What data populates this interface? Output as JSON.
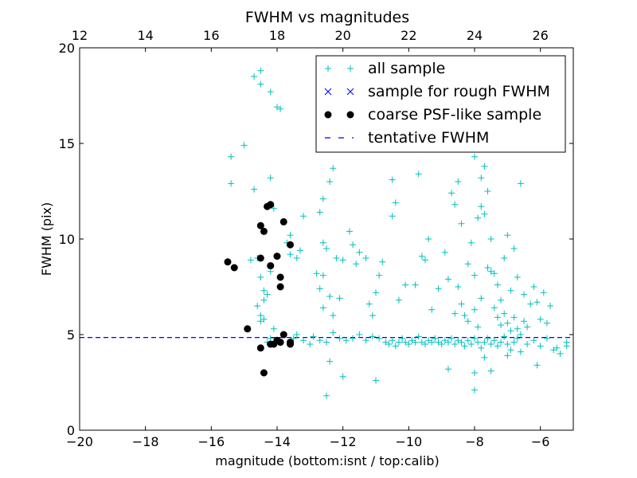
{
  "chart_data": {
    "type": "scatter",
    "title": "FWHM vs magnitudes",
    "xlabel": "magnitude (bottom:isnt / top:calib)",
    "ylabel": "FWHM (pix)",
    "xlim": [
      -20,
      -5
    ],
    "ylim": [
      0,
      20
    ],
    "top_xlim": [
      12,
      27
    ],
    "x_ticks": [
      -20,
      -18,
      -16,
      -14,
      -12,
      -10,
      -8,
      -6
    ],
    "x_tick_labels": [
      "−20",
      "−18",
      "−16",
      "−14",
      "−12",
      "−10",
      "−8",
      "−6"
    ],
    "top_x_ticks": [
      12,
      14,
      16,
      18,
      20,
      22,
      24,
      26
    ],
    "top_x_tick_labels": [
      "12",
      "14",
      "16",
      "18",
      "20",
      "22",
      "24",
      "26"
    ],
    "y_ticks": [
      0,
      5,
      10,
      15,
      20
    ],
    "y_tick_labels": [
      "0",
      "5",
      "10",
      "15",
      "20"
    ],
    "grid": false,
    "legend_position": "top-right",
    "series": [
      {
        "name": "all sample",
        "marker": "plus",
        "color": "#00bfbf",
        "points": [
          [
            -14.7,
            18.5
          ],
          [
            -14.5,
            18.8
          ],
          [
            -14.5,
            18.1
          ],
          [
            -14.2,
            17.7
          ],
          [
            -14.0,
            16.9
          ],
          [
            -13.9,
            16.8
          ],
          [
            -15.0,
            14.9
          ],
          [
            -15.4,
            14.3
          ],
          [
            -15.4,
            12.9
          ],
          [
            -14.7,
            12.6
          ],
          [
            -14.2,
            13.2
          ],
          [
            -14.1,
            11.6
          ],
          [
            -13.6,
            10.2
          ],
          [
            -13.7,
            9.8
          ],
          [
            -13.6,
            9.2
          ],
          [
            -13.3,
            9.4
          ],
          [
            -13.2,
            11.2
          ],
          [
            -13.4,
            9.0
          ],
          [
            -14.6,
            9.0
          ],
          [
            -14.8,
            8.9
          ],
          [
            -14.5,
            8.0
          ],
          [
            -14.4,
            7.3
          ],
          [
            -14.3,
            7.1
          ],
          [
            -14.6,
            6.5
          ],
          [
            -14.4,
            6.8
          ],
          [
            -14.2,
            8.3
          ],
          [
            -14.5,
            6.0
          ],
          [
            -14.4,
            5.8
          ],
          [
            -14.5,
            5.7
          ],
          [
            -14.1,
            5.3
          ],
          [
            -14.2,
            4.8
          ],
          [
            -14.3,
            4.6
          ],
          [
            -13.8,
            5.0
          ],
          [
            -13.5,
            4.8
          ],
          [
            -13.4,
            5.0
          ],
          [
            -13.2,
            4.7
          ],
          [
            -13.0,
            4.5
          ],
          [
            -12.9,
            4.9
          ],
          [
            -12.7,
            4.7
          ],
          [
            -12.5,
            4.6
          ],
          [
            -12.3,
            5.1
          ],
          [
            -12.1,
            4.8
          ],
          [
            -11.9,
            4.7
          ],
          [
            -11.7,
            4.8
          ],
          [
            -11.5,
            5.0
          ],
          [
            -11.3,
            4.7
          ],
          [
            -11.1,
            4.9
          ],
          [
            -10.9,
            4.8
          ],
          [
            -10.7,
            4.6
          ],
          [
            -10.6,
            4.5
          ],
          [
            -10.5,
            4.7
          ],
          [
            -10.4,
            4.4
          ],
          [
            -10.3,
            4.6
          ],
          [
            -10.2,
            4.8
          ],
          [
            -10.1,
            4.6
          ],
          [
            -10.0,
            4.5
          ],
          [
            -9.9,
            4.7
          ],
          [
            -9.8,
            4.6
          ],
          [
            -9.7,
            4.9
          ],
          [
            -9.6,
            4.6
          ],
          [
            -9.5,
            4.5
          ],
          [
            -9.4,
            4.7
          ],
          [
            -9.3,
            4.6
          ],
          [
            -9.2,
            4.8
          ],
          [
            -9.1,
            4.6
          ],
          [
            -9.0,
            4.5
          ],
          [
            -8.9,
            4.7
          ],
          [
            -8.8,
            4.6
          ],
          [
            -8.7,
            4.8
          ],
          [
            -8.6,
            4.5
          ],
          [
            -8.5,
            4.7
          ],
          [
            -8.4,
            4.6
          ],
          [
            -8.3,
            4.4
          ],
          [
            -8.2,
            4.7
          ],
          [
            -8.1,
            4.5
          ],
          [
            -8.0,
            4.8
          ],
          [
            -7.9,
            4.6
          ],
          [
            -7.8,
            4.3
          ],
          [
            -7.7,
            4.6
          ],
          [
            -7.6,
            4.8
          ],
          [
            -7.5,
            4.5
          ],
          [
            -7.4,
            4.7
          ],
          [
            -7.3,
            4.4
          ],
          [
            -7.2,
            4.6
          ],
          [
            -7.1,
            4.9
          ],
          [
            -7.0,
            4.5
          ],
          [
            -6.9,
            4.2
          ],
          [
            -6.8,
            4.6
          ],
          [
            -6.7,
            4.8
          ],
          [
            -6.6,
            4.1
          ],
          [
            -6.4,
            4.5
          ],
          [
            -6.2,
            4.7
          ],
          [
            -6.0,
            4.4
          ],
          [
            -5.8,
            4.8
          ],
          [
            -5.6,
            4.2
          ],
          [
            -5.4,
            4.0
          ],
          [
            -5.2,
            4.6
          ],
          [
            -5.2,
            4.4
          ],
          [
            -5.5,
            4.3
          ],
          [
            -12.7,
            7.4
          ],
          [
            -12.6,
            6.4
          ],
          [
            -12.4,
            7.0
          ],
          [
            -12.3,
            6.0
          ],
          [
            -12.1,
            6.9
          ],
          [
            -12.8,
            8.2
          ],
          [
            -12.6,
            8.1
          ],
          [
            -12.6,
            9.8
          ],
          [
            -12.7,
            11.4
          ],
          [
            -12.6,
            12.1
          ],
          [
            -12.4,
            13.0
          ],
          [
            -12.3,
            13.7
          ],
          [
            -12.5,
            9.5
          ],
          [
            -12.2,
            9.0
          ],
          [
            -12.0,
            8.9
          ],
          [
            -11.8,
            10.4
          ],
          [
            -11.7,
            9.7
          ],
          [
            -11.6,
            8.7
          ],
          [
            -11.5,
            9.3
          ],
          [
            -11.3,
            9.0
          ],
          [
            -11.2,
            6.6
          ],
          [
            -11.0,
            7.2
          ],
          [
            -11.1,
            6.0
          ],
          [
            -10.9,
            8.1
          ],
          [
            -10.8,
            8.8
          ],
          [
            -10.5,
            13.1
          ],
          [
            -10.5,
            11.2
          ],
          [
            -10.4,
            11.9
          ],
          [
            -10.3,
            6.8
          ],
          [
            -10.1,
            7.6
          ],
          [
            -9.8,
            7.6
          ],
          [
            -9.7,
            13.4
          ],
          [
            -9.6,
            9.1
          ],
          [
            -9.5,
            8.9
          ],
          [
            -9.4,
            10.0
          ],
          [
            -9.3,
            6.3
          ],
          [
            -9.1,
            7.4
          ],
          [
            -8.9,
            9.3
          ],
          [
            -8.8,
            7.9
          ],
          [
            -8.7,
            12.4
          ],
          [
            -8.6,
            11.8
          ],
          [
            -8.5,
            13.0
          ],
          [
            -8.5,
            7.5
          ],
          [
            -8.4,
            10.8
          ],
          [
            -8.3,
            6.0
          ],
          [
            -8.2,
            8.7
          ],
          [
            -8.1,
            9.8
          ],
          [
            -8.0,
            8.1
          ],
          [
            -7.9,
            11.1
          ],
          [
            -7.8,
            11.7
          ],
          [
            -7.7,
            13.8
          ],
          [
            -7.6,
            12.5
          ],
          [
            -7.5,
            10.0
          ],
          [
            -7.4,
            8.2
          ],
          [
            -7.3,
            7.6
          ],
          [
            -7.2,
            6.8
          ],
          [
            -7.1,
            9.0
          ],
          [
            -7.0,
            10.2
          ],
          [
            -6.9,
            7.3
          ],
          [
            -6.8,
            9.5
          ],
          [
            -6.7,
            8.0
          ],
          [
            -6.6,
            12.9
          ],
          [
            -6.5,
            7.1
          ],
          [
            -6.4,
            5.4
          ],
          [
            -6.3,
            6.6
          ],
          [
            -6.2,
            7.5
          ],
          [
            -6.1,
            6.7
          ],
          [
            -6.0,
            5.8
          ],
          [
            -5.9,
            7.2
          ],
          [
            -5.8,
            5.6
          ],
          [
            -5.7,
            6.5
          ],
          [
            -8.1,
            14.8
          ],
          [
            -8.0,
            14.3
          ],
          [
            -7.8,
            13.2
          ],
          [
            -7.7,
            11.3
          ],
          [
            -7.6,
            8.5
          ],
          [
            -7.5,
            8.3
          ],
          [
            -7.4,
            6.4
          ],
          [
            -7.3,
            5.9
          ],
          [
            -7.2,
            5.5
          ],
          [
            -7.1,
            6.1
          ],
          [
            -7.0,
            5.6
          ],
          [
            -6.9,
            5.2
          ],
          [
            -6.8,
            5.9
          ],
          [
            -6.7,
            5.3
          ],
          [
            -6.6,
            5.0
          ],
          [
            -6.5,
            5.7
          ],
          [
            -8.6,
            6.1
          ],
          [
            -8.4,
            6.6
          ],
          [
            -8.2,
            5.7
          ],
          [
            -8.0,
            6.3
          ],
          [
            -7.9,
            5.4
          ],
          [
            -7.8,
            6.9
          ],
          [
            -12.5,
            1.8
          ],
          [
            -11.0,
            2.6
          ],
          [
            -12.0,
            2.8
          ],
          [
            -12.4,
            3.6
          ],
          [
            -8.0,
            2.1
          ],
          [
            -8.0,
            3.0
          ],
          [
            -7.5,
            3.1
          ],
          [
            -7.7,
            3.8
          ],
          [
            -6.1,
            3.4
          ],
          [
            -8.8,
            3.2
          ],
          [
            -7.0,
            3.9
          ]
        ]
      },
      {
        "name": "sample for rough FWHM",
        "marker": "x",
        "color": "#0000ff",
        "points": []
      },
      {
        "name": "coarse PSF-like sample",
        "marker": "circle",
        "color": "#000000",
        "points": [
          [
            -15.5,
            8.8
          ],
          [
            -15.3,
            8.5
          ],
          [
            -14.5,
            10.7
          ],
          [
            -14.4,
            10.4
          ],
          [
            -14.3,
            11.7
          ],
          [
            -14.2,
            11.8
          ],
          [
            -13.8,
            10.9
          ],
          [
            -13.6,
            9.7
          ],
          [
            -14.0,
            9.1
          ],
          [
            -14.5,
            9.0
          ],
          [
            -14.2,
            8.6
          ],
          [
            -13.9,
            8.0
          ],
          [
            -13.9,
            7.5
          ],
          [
            -14.9,
            5.3
          ],
          [
            -13.8,
            5.0
          ],
          [
            -14.0,
            4.7
          ],
          [
            -14.1,
            4.5
          ],
          [
            -13.9,
            4.6
          ],
          [
            -14.2,
            4.5
          ],
          [
            -13.6,
            4.6
          ],
          [
            -13.6,
            4.5
          ],
          [
            -14.5,
            4.3
          ],
          [
            -14.4,
            3.0
          ]
        ]
      },
      {
        "name": "tentative FWHM",
        "marker": "dashed-line",
        "color": "#0000ff",
        "y": 4.85
      }
    ]
  }
}
